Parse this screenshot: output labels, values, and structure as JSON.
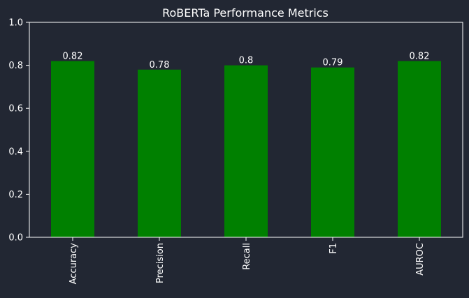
{
  "chart_data": {
    "type": "bar",
    "title": "RoBERTa Performance Metrics",
    "xlabel": "",
    "ylabel": "",
    "categories": [
      "Accuracy",
      "Precision",
      "Recall",
      "F1",
      "AUROC"
    ],
    "values": [
      0.82,
      0.78,
      0.8,
      0.79,
      0.82
    ],
    "data_labels": [
      "0.82",
      "0.78",
      "0.8",
      "0.79",
      "0.82"
    ],
    "ylim": [
      0.0,
      1.0
    ],
    "yticks": [
      0.0,
      0.2,
      0.4,
      0.6,
      0.8,
      1.0
    ],
    "ytick_labels": [
      "0.0",
      "0.2",
      "0.4",
      "0.6",
      "0.8",
      "1.0"
    ],
    "grid": false,
    "legend": "none",
    "colors": {
      "background": "#222733",
      "bar": "#008000",
      "text": "#ffffff",
      "axis": "#ffffff"
    }
  }
}
